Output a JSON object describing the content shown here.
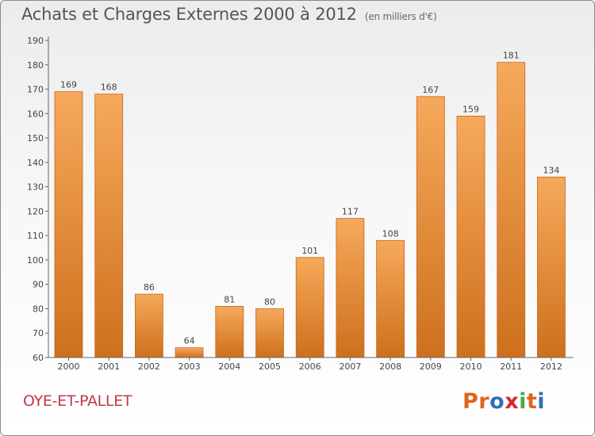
{
  "title": "Achats et Charges Externes 2000 à 2012",
  "subtitle": "(en milliers d'€)",
  "commune": "OYE-ET-PALLET",
  "logo": {
    "text": "Proxiti",
    "colors": [
      "#e0651e",
      "#e0651e",
      "#2f6fb7",
      "#d1292f",
      "#4aa84a",
      "#e0651e",
      "#2f6fb7"
    ]
  },
  "colors": {
    "bar_light": "#f6a95b",
    "bar_dark": "#cd701d",
    "axis": "#666666",
    "text": "#444444"
  },
  "chart_data": {
    "type": "bar",
    "categories": [
      "2000",
      "2001",
      "2002",
      "2003",
      "2004",
      "2005",
      "2006",
      "2007",
      "2008",
      "2009",
      "2010",
      "2011",
      "2012"
    ],
    "values": [
      169,
      168,
      86,
      64,
      81,
      80,
      101,
      117,
      108,
      167,
      159,
      181,
      134
    ],
    "ylim": [
      60,
      190
    ],
    "yticks": [
      60,
      70,
      80,
      90,
      100,
      110,
      120,
      130,
      140,
      150,
      160,
      170,
      180,
      190
    ],
    "xlabel": "",
    "ylabel": "",
    "grid": false,
    "data_labels": true
  }
}
